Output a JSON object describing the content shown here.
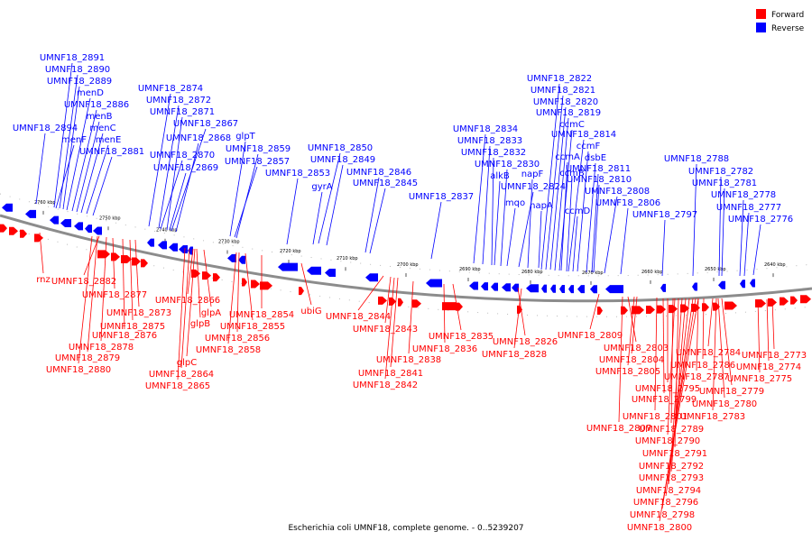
{
  "legend": {
    "forward": {
      "label": "Forward",
      "color": "#ff0000"
    },
    "reverse": {
      "label": "Reverse",
      "color": "#0000ff"
    }
  },
  "caption": "Escherichia coli UMNF18, complete genome. - 0..5239207",
  "scale": {
    "tick_labels": [
      "2760 kbp",
      "2750 kbp",
      "2740 kbp",
      "2730 kbp",
      "2720 kbp",
      "2710 kbp",
      "2700 kbp",
      "2690 kbp",
      "2680 kbp",
      "2670 kbp",
      "2660 kbp",
      "2650 kbp",
      "2640 kbp"
    ]
  },
  "labels": {
    "reverse": [
      "UMNF18_2891",
      "UMNF18_2890",
      "UMNF18_2889",
      "menD",
      "UMNF18_2886",
      "menB",
      "UMNF18_2894",
      "menC",
      "menF",
      "menE",
      "UMNF18_2881",
      "UMNF18_2874",
      "UMNF18_2872",
      "UMNF18_2871",
      "UMNF18_2867",
      "UMNF18_2868",
      "glpT",
      "UMNF18_2859",
      "UMNF18_2870",
      "UMNF18_2857",
      "UMNF18_2869",
      "UMNF18_2850",
      "UMNF18_2849",
      "UMNF18_2853",
      "UMNF18_2846",
      "gyrA",
      "UMNF18_2845",
      "UMNF18_2837",
      "UMNF18_2834",
      "UMNF18_2833",
      "UMNF18_2832",
      "UMNF18_2830",
      "alkB",
      "UMNF18_2824",
      "napF",
      "mqo",
      "napA",
      "UMNF18_2822",
      "UMNF18_2821",
      "UMNF18_2820",
      "UMNF18_2819",
      "ccmC",
      "UMNF18_2814",
      "ccmF",
      "ccmA",
      "dsbE",
      "UMNF18_2811",
      "ccmB",
      "UMNF18_2810",
      "UMNF18_2808",
      "ccmD",
      "UMNF18_2806",
      "UMNF18_2797",
      "UMNF18_2788",
      "UMNF18_2782",
      "UMNF18_2781",
      "UMNF18_2778",
      "UMNF18_2777",
      "UMNF18_2776"
    ],
    "forward": [
      "rnz",
      "UMNF18_2882",
      "UMNF18_2877",
      "UMNF18_2873",
      "UMNF18_2875",
      "UMNF18_2876",
      "UMNF18_2878",
      "UMNF18_2879",
      "UMNF18_2880",
      "UMNF18_2866",
      "glpA",
      "glpB",
      "UMNF18_2855",
      "UMNF18_2854",
      "UMNF18_2856",
      "UMNF18_2858",
      "glpC",
      "UMNF18_2864",
      "UMNF18_2865",
      "ubiG",
      "UMNF18_2844",
      "UMNF18_2843",
      "UMNF18_2838",
      "UMNF18_2841",
      "UMNF18_2842",
      "UMNF18_2835",
      "UMNF18_2836",
      "UMNF18_2826",
      "UMNF18_2828",
      "UMNF18_2809",
      "UMNF18_2803",
      "UMNF18_2804",
      "UMNF18_2805",
      "UMNF18_2784",
      "UMNF18_2786",
      "UMNF18_2787",
      "UMNF18_2773",
      "UMNF18_2774",
      "UMNF18_2775",
      "UMNF18_2795",
      "UMNF18_2799",
      "UMNF18_2779",
      "UMNF18_2780",
      "UMNF18_2801",
      "UMNF18_2783",
      "UMNF18_2807",
      "UMNF18_2789",
      "UMNF18_2790",
      "UMNF18_2791",
      "UMNF18_2792",
      "UMNF18_2793",
      "UMNF18_2794",
      "UMNF18_2796",
      "UMNF18_2798",
      "UMNF18_2800"
    ]
  }
}
